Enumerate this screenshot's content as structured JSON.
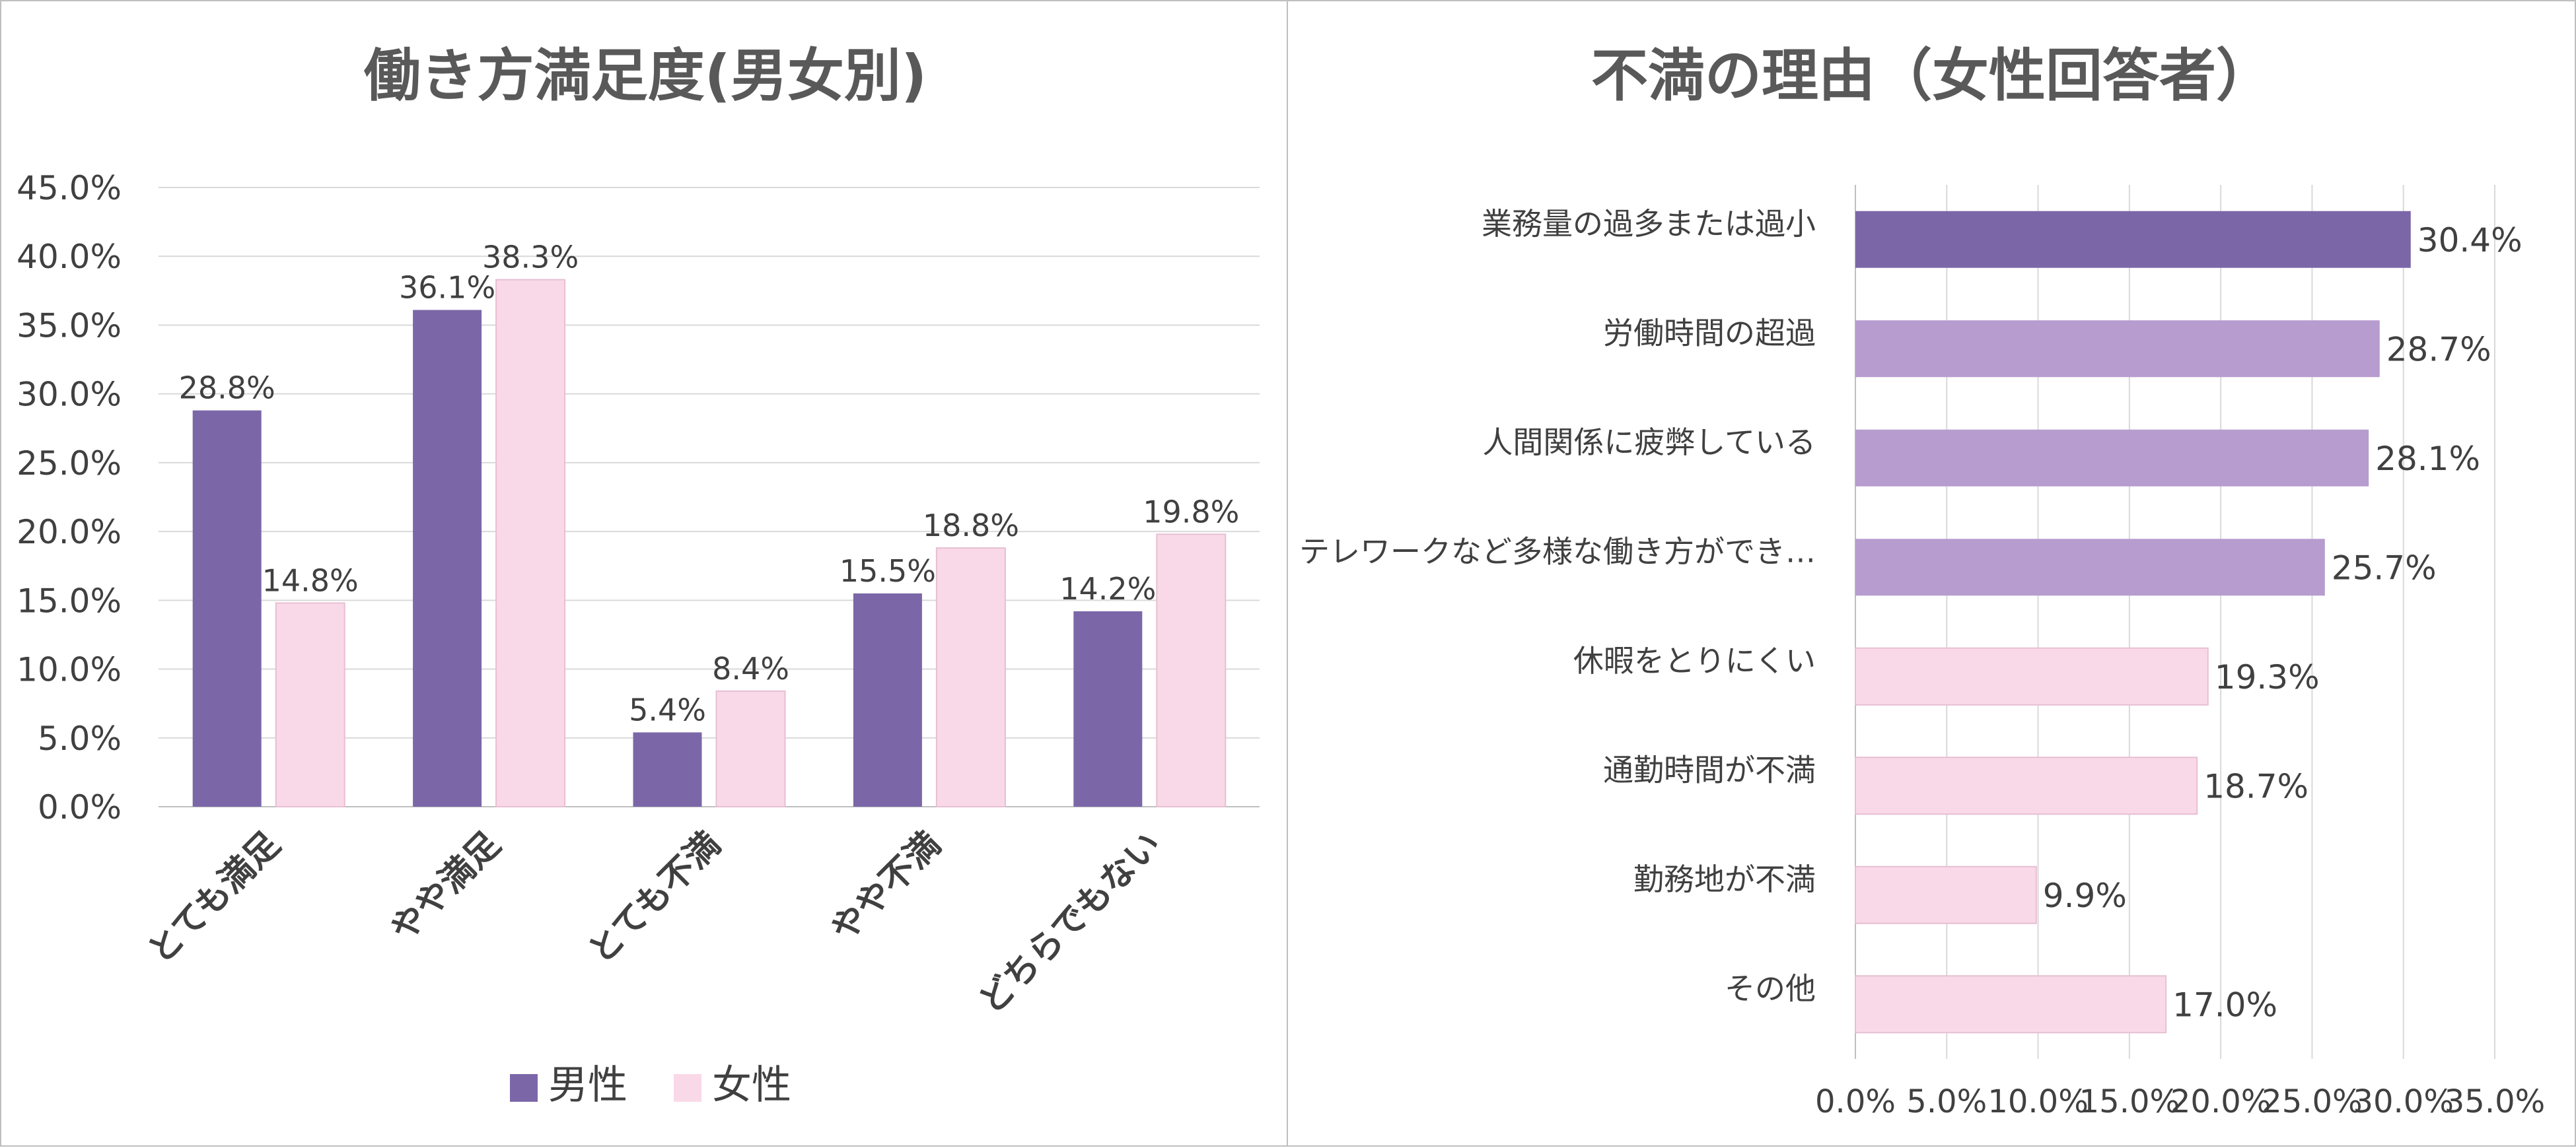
{
  "chart_data": [
    {
      "type": "bar",
      "title": "働き方満足度(男女別)",
      "categories": [
        "とても満足",
        "やや満足",
        "とても不満",
        "やや不満",
        "どちらでもない"
      ],
      "series": [
        {
          "name": "男性",
          "values": [
            28.8,
            36.1,
            5.4,
            15.5,
            14.2
          ],
          "color": "#7B67A8"
        },
        {
          "name": "女性",
          "values": [
            14.8,
            38.3,
            8.4,
            18.8,
            19.8
          ],
          "color": "#F9D9E8"
        }
      ],
      "data_labels": [
        [
          "28.8%",
          "36.1%",
          "5.4%",
          "15.5%",
          "14.2%"
        ],
        [
          "14.8%",
          "38.3%",
          "8.4%",
          "18.8%",
          "19.8%"
        ]
      ],
      "y_ticks": [
        "0.0%",
        "5.0%",
        "10.0%",
        "15.0%",
        "20.0%",
        "25.0%",
        "30.0%",
        "35.0%",
        "40.0%",
        "45.0%"
      ],
      "ylim": [
        0,
        45
      ],
      "grid": true,
      "legend": "bottom"
    },
    {
      "type": "bar",
      "orientation": "horizontal",
      "title": "不満の理由（女性回答者）",
      "categories": [
        "業務量の過多または過小",
        "労働時間の超過",
        "人間関係に疲弊している",
        "テレワークなど多様な働き方ができ…",
        "休暇をとりにくい",
        "通勤時間が不満",
        "勤務地が不満",
        "その他"
      ],
      "values": [
        30.4,
        28.7,
        28.1,
        25.7,
        19.3,
        18.7,
        9.9,
        17.0
      ],
      "data_labels": [
        "30.4%",
        "28.7%",
        "28.1%",
        "25.7%",
        "19.3%",
        "18.7%",
        "9.9%",
        "17.0%"
      ],
      "colors": [
        "#7B67A8",
        "#B69CCF",
        "#B69CCF",
        "#B69CCF",
        "#F9D9E8",
        "#F9D9E8",
        "#F9D9E8",
        "#F9D9E8"
      ],
      "x_ticks": [
        "0.0%",
        "5.0%",
        "10.0%",
        "15.0%",
        "20.0%",
        "25.0%",
        "30.0%",
        "35.0%"
      ],
      "xlim": [
        0,
        35
      ],
      "grid": true
    }
  ]
}
